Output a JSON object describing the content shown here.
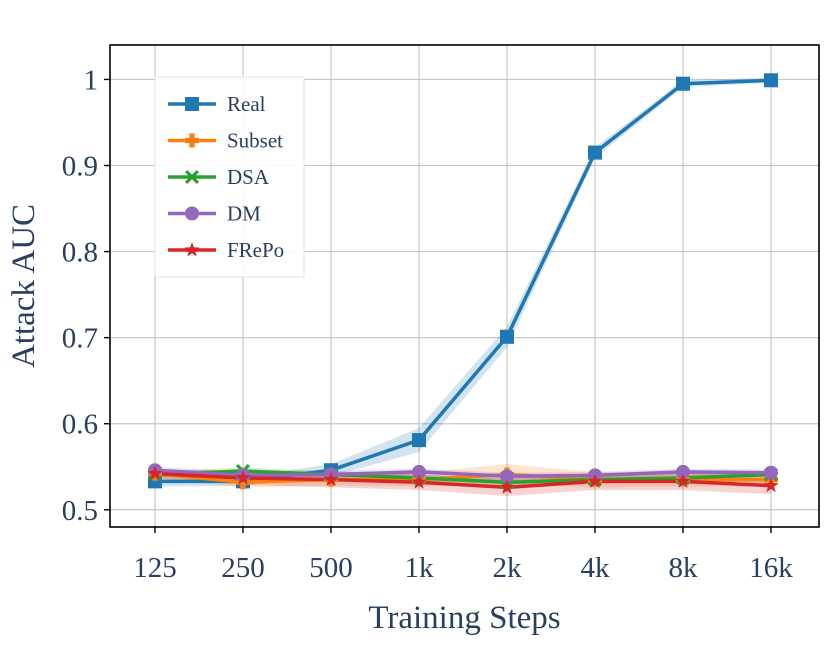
{
  "chart_data": {
    "type": "line",
    "xlabel": "Training Steps",
    "ylabel": "Attack AUC",
    "categories": [
      "125",
      "250",
      "500",
      "1k",
      "2k",
      "4k",
      "8k",
      "16k"
    ],
    "y_ticks": [
      "0.5",
      "0.6",
      "0.7",
      "0.8",
      "0.9",
      "1"
    ],
    "y_tick_values": [
      0.5,
      0.6,
      0.7,
      0.8,
      0.9,
      1.0
    ],
    "ylim": [
      0.48,
      1.04
    ],
    "grid": true,
    "legend_position": "top-left",
    "series": [
      {
        "name": "Real",
        "color": "#1f77b4",
        "marker": "square",
        "values": [
          0.533,
          0.533,
          0.546,
          0.581,
          0.701,
          0.915,
          0.995,
          0.999
        ],
        "band": [
          0.006,
          0.005,
          0.007,
          0.014,
          0.012,
          0.006,
          0.004,
          0.003
        ]
      },
      {
        "name": "Subset",
        "color": "#ff7f0e",
        "marker": "plus",
        "values": [
          0.542,
          0.532,
          0.535,
          0.535,
          0.541,
          0.535,
          0.535,
          0.535
        ],
        "band": [
          0.006,
          0.006,
          0.007,
          0.008,
          0.012,
          0.009,
          0.008,
          0.008
        ]
      },
      {
        "name": "DSA",
        "color": "#2ca02c",
        "marker": "x",
        "values": [
          0.541,
          0.545,
          0.541,
          0.537,
          0.532,
          0.535,
          0.537,
          0.541
        ],
        "band": [
          0.004,
          0.004,
          0.004,
          0.004,
          0.004,
          0.004,
          0.004,
          0.004
        ]
      },
      {
        "name": "DM",
        "color": "#9467bd",
        "marker": "circle",
        "values": [
          0.546,
          0.54,
          0.541,
          0.544,
          0.539,
          0.54,
          0.544,
          0.543
        ],
        "band": [
          0.004,
          0.004,
          0.004,
          0.004,
          0.004,
          0.004,
          0.004,
          0.004
        ]
      },
      {
        "name": "FRePo",
        "color": "#d62728",
        "marker": "star",
        "values": [
          0.542,
          0.537,
          0.535,
          0.532,
          0.526,
          0.533,
          0.533,
          0.528
        ],
        "band": [
          0.005,
          0.008,
          0.009,
          0.009,
          0.01,
          0.01,
          0.01,
          0.01
        ]
      }
    ]
  }
}
